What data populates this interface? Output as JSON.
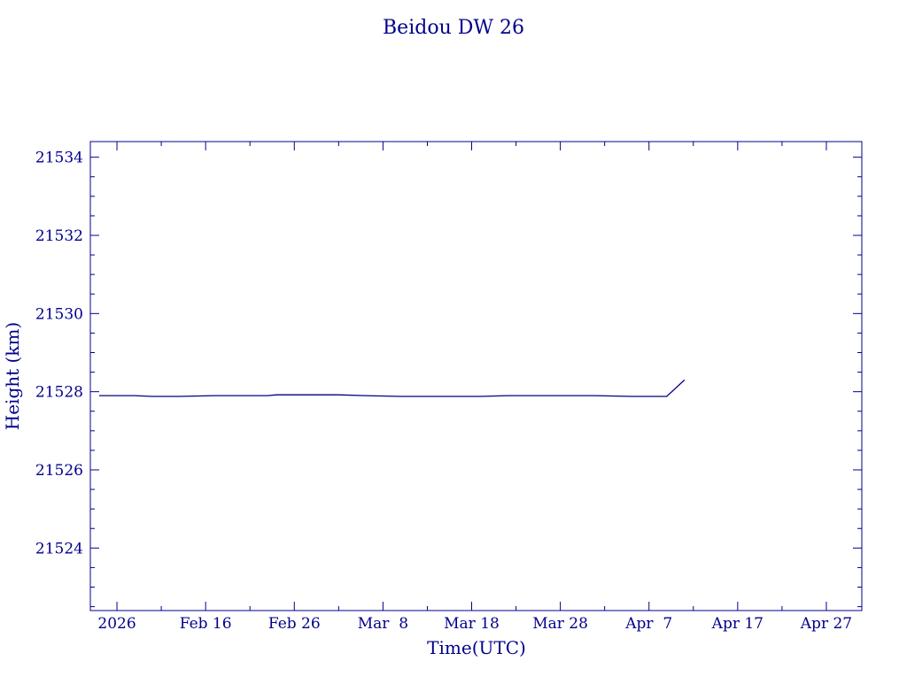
{
  "chart_data": {
    "type": "line",
    "title": "Beidou DW 26",
    "xlabel": "Time(UTC)",
    "ylabel": "Height (km)",
    "xlim": [
      "2026-02-03",
      "2026-05-01"
    ],
    "ylim": [
      21522.4,
      21534.4
    ],
    "x_tick_labels": [
      {
        "date": "2026-02-06",
        "label": "2026"
      },
      {
        "date": "2026-02-16",
        "label": "Feb 16"
      },
      {
        "date": "2026-02-26",
        "label": "Feb 26"
      },
      {
        "date": "2026-03-08",
        "label": "Mar  8"
      },
      {
        "date": "2026-03-18",
        "label": "Mar 18"
      },
      {
        "date": "2026-03-28",
        "label": "Mar 28"
      },
      {
        "date": "2026-04-07",
        "label": "Apr  7"
      },
      {
        "date": "2026-04-17",
        "label": "Apr 17"
      },
      {
        "date": "2026-04-27",
        "label": "Apr 27"
      }
    ],
    "x_minor_ticks": [
      "2026-02-11",
      "2026-02-21",
      "2026-03-03",
      "2026-03-13",
      "2026-03-23",
      "2026-04-02",
      "2026-04-12",
      "2026-04-22"
    ],
    "y_major_ticks": [
      21524,
      21526,
      21528,
      21530,
      21532,
      21534
    ],
    "y_minor_step": 0.5,
    "grid": false,
    "series": [
      {
        "color": "#000080",
        "x": [
          "2026-02-04",
          "2026-02-05",
          "2026-02-06",
          "2026-02-08",
          "2026-02-10",
          "2026-02-13",
          "2026-02-17",
          "2026-02-20",
          "2026-02-23",
          "2026-02-24",
          "2026-03-01",
          "2026-03-03",
          "2026-03-06",
          "2026-03-10",
          "2026-03-15",
          "2026-03-19",
          "2026-03-22",
          "2026-03-25",
          "2026-03-28",
          "2026-04-01",
          "2026-04-05",
          "2026-04-09",
          "2026-04-11"
        ],
        "y": [
          21527.9,
          21527.9,
          21527.9,
          21527.9,
          21527.88,
          21527.88,
          21527.9,
          21527.9,
          21527.9,
          21527.92,
          21527.92,
          21527.92,
          21527.9,
          21527.88,
          21527.88,
          21527.88,
          21527.9,
          21527.9,
          21527.9,
          21527.9,
          21527.88,
          21527.88,
          21528.3
        ]
      }
    ]
  }
}
